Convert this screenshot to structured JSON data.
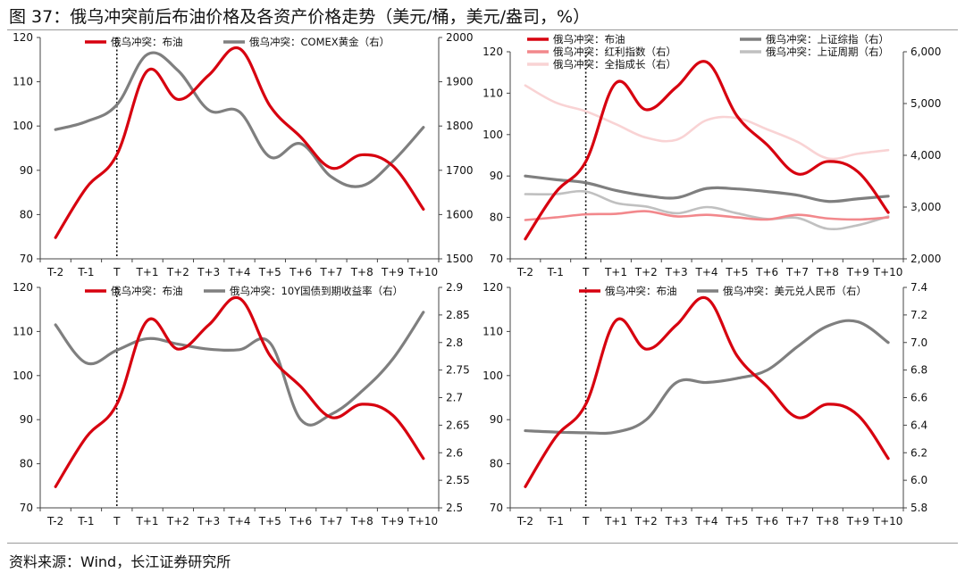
{
  "figure": {
    "title": "图 37：俄乌冲突前后布油价格及各资产价格走势（美元/桶，美元/盎司，%）",
    "source": "资料来源：Wind，长江证券研究所"
  },
  "chart_data": [
    {
      "type": "line",
      "categories": [
        "T-2",
        "T-1",
        "T",
        "T+1",
        "T+2",
        "T+3",
        "T+4",
        "T+5",
        "T+6",
        "T+7",
        "T+8",
        "T+9",
        "T+10"
      ],
      "event_marker": "T",
      "ylim": [
        70,
        120
      ],
      "yticks": [
        70,
        80,
        90,
        100,
        110,
        120
      ],
      "ylim_right": [
        1500,
        2000
      ],
      "yticks_right": [
        1500,
        1600,
        1700,
        1800,
        1900,
        2000
      ],
      "legend_placement": "top",
      "series": [
        {
          "name": "俄乌冲突：布油",
          "axis": "left",
          "color": "#d7000f",
          "width": 3.2,
          "values": [
            74.8,
            86.0,
            93.5,
            112.5,
            106.0,
            111.5,
            117.5,
            104.5,
            97.5,
            90.5,
            93.5,
            91.0,
            81.2
          ]
        },
        {
          "name": "俄乌冲突：COMEX黄金（右）",
          "axis": "right",
          "color": "#7f7f7f",
          "width": 3.2,
          "values": [
            1792,
            1810,
            1848,
            1962,
            1925,
            1836,
            1832,
            1730,
            1760,
            1685,
            1665,
            1720,
            1797
          ]
        }
      ]
    },
    {
      "type": "line",
      "categories": [
        "T-2",
        "T-1",
        "T",
        "T+1",
        "T+2",
        "T+3",
        "T+4",
        "T+5",
        "T+6",
        "T+7",
        "T+8",
        "T+9",
        "T+10"
      ],
      "event_marker": "T",
      "ylim": [
        70,
        120
      ],
      "yticks": [
        70,
        80,
        90,
        100,
        110,
        120
      ],
      "ylim_right": [
        2000,
        6000
      ],
      "yticks_right": [
        "2,000",
        "3,000",
        "4,000",
        "5,000",
        "6,000"
      ],
      "yticks_right_values": [
        2000,
        3000,
        4000,
        5000,
        6000
      ],
      "legend_placement": "top",
      "series": [
        {
          "name": "俄乌冲突：布油",
          "axis": "left",
          "color": "#d7000f",
          "width": 3.2,
          "values": [
            74.8,
            86.0,
            93.5,
            112.5,
            106.0,
            111.5,
            117.5,
            104.5,
            97.5,
            90.5,
            93.5,
            91.0,
            81.2
          ]
        },
        {
          "name": "俄乌冲突：上证综指（右）",
          "axis": "right",
          "color": "#7f7f7f",
          "width": 3.2,
          "values": [
            3600,
            3530,
            3470,
            3320,
            3220,
            3180,
            3360,
            3350,
            3300,
            3230,
            3110,
            3160,
            3210
          ]
        },
        {
          "name": "俄乌冲突：红利指数（右）",
          "axis": "right",
          "color": "#f2888c",
          "width": 2.6,
          "values": [
            2750,
            2800,
            2860,
            2870,
            2920,
            2820,
            2850,
            2800,
            2760,
            2850,
            2780,
            2760,
            2800
          ]
        },
        {
          "name": "俄乌冲突：上证周期（右）",
          "axis": "right",
          "color": "#c0c0c0",
          "width": 2.6,
          "values": [
            3250,
            3250,
            3300,
            3080,
            3010,
            2880,
            3000,
            2880,
            2770,
            2790,
            2580,
            2650,
            2820
          ]
        },
        {
          "name": "俄乌冲突：全指成长（右）",
          "axis": "right",
          "color": "#f9d3d4",
          "width": 2.6,
          "values": [
            5350,
            5020,
            4850,
            4600,
            4340,
            4300,
            4680,
            4720,
            4500,
            4260,
            3940,
            4030,
            4100
          ]
        }
      ]
    },
    {
      "type": "line",
      "categories": [
        "T-2",
        "T-1",
        "T",
        "T+1",
        "T+2",
        "T+3",
        "T+4",
        "T+5",
        "T+6",
        "T+7",
        "T+8",
        "T+9",
        "T+10"
      ],
      "event_marker": "T",
      "ylim": [
        70,
        120
      ],
      "yticks": [
        70,
        80,
        90,
        100,
        110,
        120
      ],
      "ylim_right": [
        2.5,
        2.9
      ],
      "yticks_right": [
        "2.5",
        "2.55",
        "2.6",
        "2.65",
        "2.7",
        "2.75",
        "2.8",
        "2.85",
        "2.9"
      ],
      "yticks_right_values": [
        2.5,
        2.55,
        2.6,
        2.65,
        2.7,
        2.75,
        2.8,
        2.85,
        2.9
      ],
      "legend_placement": "top",
      "series": [
        {
          "name": "俄乌冲突：布油",
          "axis": "left",
          "color": "#d7000f",
          "width": 3.2,
          "values": [
            74.8,
            86.0,
            93.5,
            112.5,
            106.0,
            111.5,
            117.5,
            104.5,
            97.5,
            90.5,
            93.5,
            91.0,
            81.2
          ]
        },
        {
          "name": "俄乌冲突：10Y国债到期收益率（右）",
          "axis": "right",
          "color": "#7f7f7f",
          "width": 3.2,
          "values": [
            2.832,
            2.763,
            2.786,
            2.807,
            2.797,
            2.788,
            2.787,
            2.799,
            2.66,
            2.67,
            2.712,
            2.77,
            2.855
          ]
        }
      ]
    },
    {
      "type": "line",
      "categories": [
        "T-2",
        "T-1",
        "T",
        "T+1",
        "T+2",
        "T+3",
        "T+4",
        "T+5",
        "T+6",
        "T+7",
        "T+8",
        "T+9",
        "T+10"
      ],
      "event_marker": "T",
      "ylim": [
        70,
        120
      ],
      "yticks": [
        70,
        80,
        90,
        100,
        110,
        120
      ],
      "ylim_right": [
        5.8,
        7.4
      ],
      "yticks_right": [
        "5.8",
        "6.0",
        "6.2",
        "6.4",
        "6.6",
        "6.8",
        "7.0",
        "7.2",
        "7.4"
      ],
      "yticks_right_values": [
        5.8,
        6.0,
        6.2,
        6.4,
        6.6,
        6.8,
        7.0,
        7.2,
        7.4
      ],
      "legend_placement": "top",
      "series": [
        {
          "name": "俄乌冲突：布油",
          "axis": "left",
          "color": "#d7000f",
          "width": 3.2,
          "values": [
            74.8,
            86.0,
            93.5,
            112.5,
            106.0,
            111.5,
            117.5,
            104.5,
            97.5,
            90.5,
            93.5,
            91.0,
            81.2
          ]
        },
        {
          "name": "俄乌冲突：美元兑人民币（右）",
          "axis": "right",
          "color": "#7f7f7f",
          "width": 3.2,
          "values": [
            6.36,
            6.35,
            6.345,
            6.35,
            6.44,
            6.71,
            6.71,
            6.74,
            6.8,
            6.97,
            7.12,
            7.15,
            7.0
          ]
        }
      ]
    }
  ]
}
